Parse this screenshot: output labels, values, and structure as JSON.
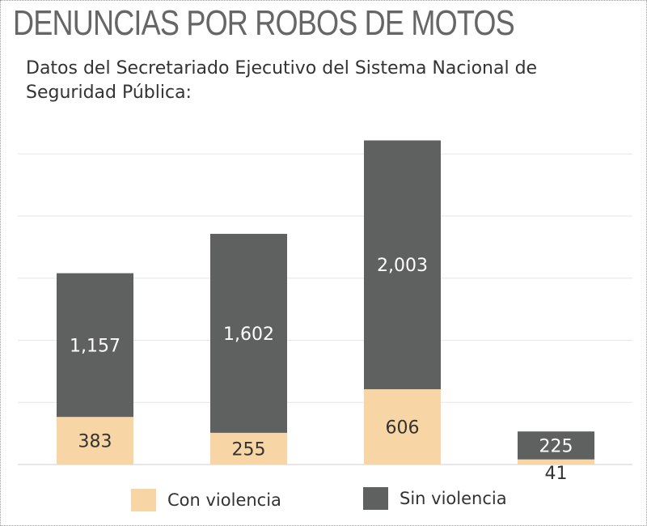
{
  "title": "DENUNCIAS POR ROBOS DE MOTOS",
  "subtitle": "Datos del Secretariado Ejecutivo del Sistema Nacional de Seguridad Pública:",
  "colors": {
    "con_violencia": "#f8d5a4",
    "sin_violencia": "#5f6160",
    "grid": "#e6e6e6"
  },
  "chart_data": {
    "type": "bar",
    "stacked": true,
    "categories": [
      "",
      "",
      "",
      ""
    ],
    "series": [
      {
        "name": "Con violencia",
        "values": [
          383,
          255,
          606,
          41
        ],
        "labels": [
          "383",
          "255",
          "606",
          "41"
        ]
      },
      {
        "name": "Sin violencia",
        "values": [
          1157,
          1602,
          2003,
          225
        ],
        "labels": [
          "1,157",
          "1,602",
          "2,003",
          "225"
        ]
      }
    ],
    "ylim": [
      0,
      2700
    ],
    "grid": true,
    "legend": "bottom"
  }
}
